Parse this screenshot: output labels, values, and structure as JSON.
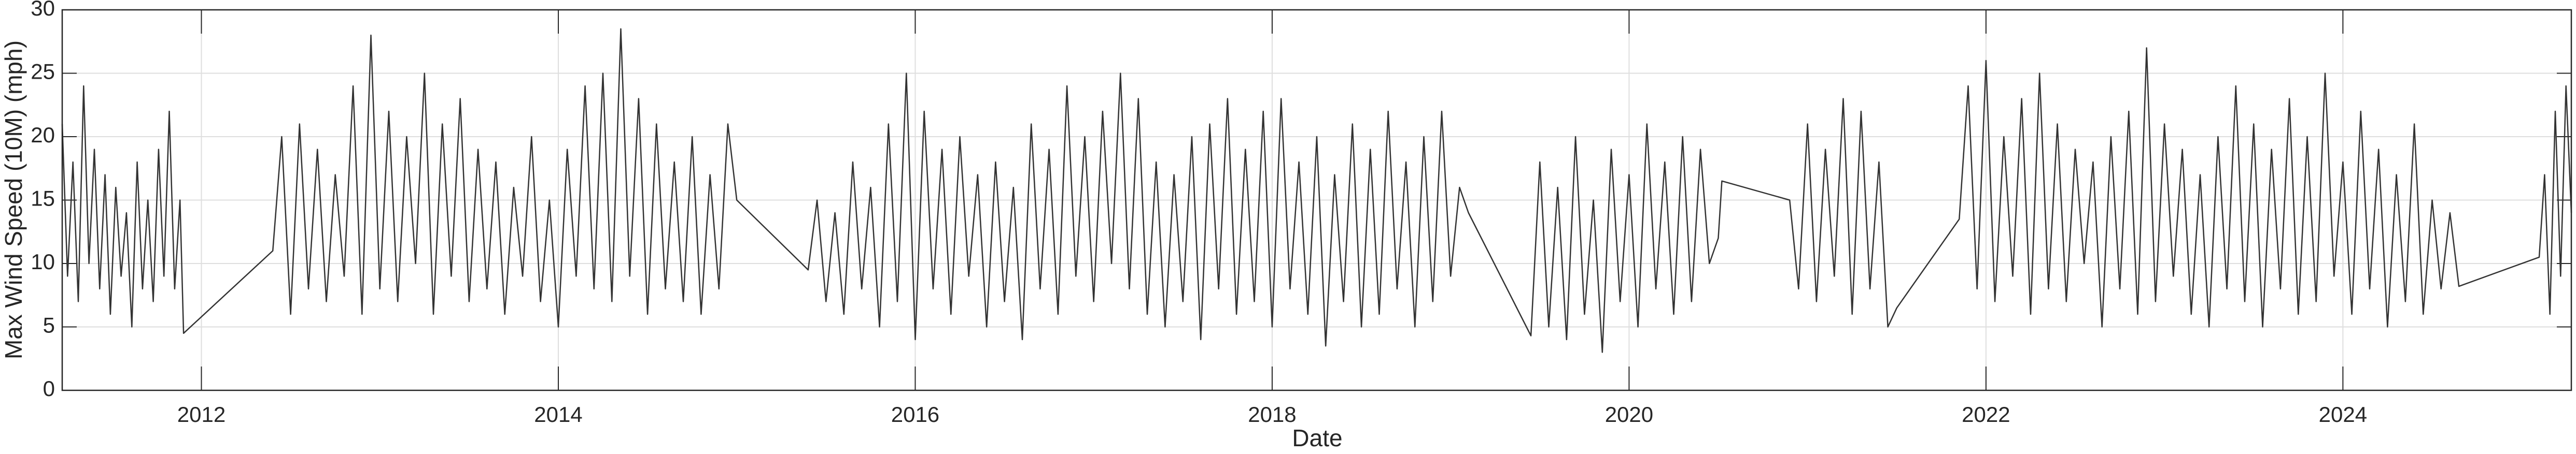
{
  "chart_data": {
    "type": "line",
    "x_label": "Date",
    "y_label": "Max Wind Speed (10M) (mph)",
    "color": "#333333",
    "grid": true,
    "xlim": [
      2011.22,
      2025.28
    ],
    "xticks": [
      2012,
      2014,
      2016,
      2018,
      2020,
      2022,
      2024
    ],
    "ylim": [
      0,
      30
    ],
    "yticks": [
      0,
      5,
      10,
      15,
      20,
      25,
      30
    ],
    "x": [
      2011.22,
      2011.25,
      2011.28,
      2011.31,
      2011.34,
      2011.37,
      2011.4,
      2011.43,
      2011.46,
      2011.49,
      2011.52,
      2011.55,
      2011.58,
      2011.61,
      2011.64,
      2011.67,
      2011.7,
      2011.73,
      2011.76,
      2011.79,
      2011.82,
      2011.85,
      2011.88,
      2011.9,
      2012.4,
      2012.45,
      2012.5,
      2012.55,
      2012.6,
      2012.65,
      2012.7,
      2012.75,
      2012.8,
      2012.85,
      2012.9,
      2012.95,
      2013,
      2013.05,
      2013.1,
      2013.15,
      2013.2,
      2013.25,
      2013.3,
      2013.35,
      2013.4,
      2013.45,
      2013.5,
      2013.55,
      2013.6,
      2013.65,
      2013.7,
      2013.75,
      2013.8,
      2013.85,
      2013.9,
      2013.95,
      2014,
      2014.05,
      2014.1,
      2014.15,
      2014.2,
      2014.25,
      2014.3,
      2014.35,
      2014.4,
      2014.45,
      2014.5,
      2014.55,
      2014.6,
      2014.65,
      2014.7,
      2014.75,
      2014.8,
      2014.85,
      2014.9,
      2014.95,
      2015,
      2015.4,
      2015.45,
      2015.5,
      2015.55,
      2015.6,
      2015.65,
      2015.7,
      2015.75,
      2015.8,
      2015.85,
      2015.9,
      2015.95,
      2016,
      2016.05,
      2016.1,
      2016.15,
      2016.2,
      2016.25,
      2016.3,
      2016.35,
      2016.4,
      2016.45,
      2016.5,
      2016.55,
      2016.6,
      2016.65,
      2016.7,
      2016.75,
      2016.8,
      2016.85,
      2016.9,
      2016.95,
      2017,
      2017.05,
      2017.1,
      2017.15,
      2017.2,
      2017.25,
      2017.3,
      2017.35,
      2017.4,
      2017.45,
      2017.5,
      2017.55,
      2017.6,
      2017.65,
      2017.7,
      2017.75,
      2017.8,
      2017.85,
      2017.9,
      2017.95,
      2018,
      2018.05,
      2018.1,
      2018.15,
      2018.2,
      2018.25,
      2018.3,
      2018.35,
      2018.4,
      2018.45,
      2018.5,
      2018.55,
      2018.6,
      2018.65,
      2018.7,
      2018.75,
      2018.8,
      2018.85,
      2018.9,
      2018.95,
      2019,
      2019.05,
      2019.1,
      2019.45,
      2019.5,
      2019.55,
      2019.6,
      2019.65,
      2019.7,
      2019.75,
      2019.8,
      2019.85,
      2019.9,
      2019.95,
      2020,
      2020.05,
      2020.1,
      2020.15,
      2020.2,
      2020.25,
      2020.3,
      2020.35,
      2020.4,
      2020.45,
      2020.5,
      2020.52,
      2020.9,
      2020.95,
      2021,
      2021.05,
      2021.1,
      2021.15,
      2021.2,
      2021.25,
      2021.3,
      2021.35,
      2021.4,
      2021.45,
      2021.5,
      2021.85,
      2021.9,
      2021.95,
      2022,
      2022.05,
      2022.1,
      2022.15,
      2022.2,
      2022.25,
      2022.3,
      2022.35,
      2022.4,
      2022.45,
      2022.5,
      2022.55,
      2022.6,
      2022.65,
      2022.7,
      2022.75,
      2022.8,
      2022.85,
      2022.9,
      2022.95,
      2023,
      2023.05,
      2023.1,
      2023.15,
      2023.2,
      2023.25,
      2023.3,
      2023.35,
      2023.4,
      2023.45,
      2023.5,
      2023.55,
      2023.6,
      2023.65,
      2023.7,
      2023.75,
      2023.8,
      2023.85,
      2023.9,
      2023.95,
      2024,
      2024.05,
      2024.1,
      2024.15,
      2024.2,
      2024.25,
      2024.3,
      2024.35,
      2024.4,
      2024.45,
      2024.5,
      2024.55,
      2024.6,
      2024.65,
      2025.1,
      2025.13,
      2025.16,
      2025.19,
      2025.22,
      2025.25,
      2025.28
    ],
    "values": [
      21,
      9,
      18,
      7,
      24,
      10,
      19,
      8,
      17,
      6,
      16,
      9,
      14,
      5,
      18,
      8,
      15,
      7,
      19,
      9,
      22,
      8,
      15,
      4.5,
      11,
      20,
      6,
      21,
      8,
      19,
      7,
      17,
      9,
      24,
      6,
      28,
      8,
      22,
      7,
      20,
      10,
      25,
      6,
      21,
      9,
      23,
      7,
      19,
      8,
      18,
      6,
      16,
      9,
      20,
      7,
      15,
      5,
      19,
      9,
      24,
      8,
      25,
      7,
      28.5,
      9,
      23,
      6,
      21,
      8,
      18,
      7,
      20,
      6,
      17,
      8,
      21,
      15,
      9.5,
      15,
      7,
      14,
      6,
      18,
      8,
      16,
      5,
      21,
      7,
      25,
      4,
      22,
      8,
      19,
      6,
      20,
      9,
      17,
      5,
      18,
      7,
      16,
      4,
      21,
      8,
      19,
      6,
      24,
      9,
      20,
      7,
      22,
      10,
      25,
      8,
      23,
      6,
      18,
      5,
      17,
      7,
      20,
      4,
      21,
      8,
      23,
      6,
      19,
      7,
      22,
      5,
      23,
      8,
      18,
      6,
      20,
      3.5,
      17,
      7,
      21,
      5,
      19,
      6,
      22,
      8,
      18,
      5,
      20,
      7,
      22,
      9,
      16,
      14,
      4.3,
      18,
      5,
      16,
      4,
      20,
      6,
      15,
      3,
      19,
      7,
      17,
      5,
      21,
      8,
      18,
      6,
      20,
      7,
      19,
      10,
      12,
      16.5,
      15,
      8,
      21,
      7,
      19,
      9,
      23,
      6,
      22,
      8,
      18,
      5,
      6.5,
      13.5,
      24,
      8,
      26,
      7,
      20,
      9,
      23,
      6,
      25,
      8,
      21,
      7,
      19,
      10,
      18,
      5,
      20,
      8,
      22,
      6,
      27,
      7,
      21,
      9,
      19,
      6,
      17,
      5,
      20,
      8,
      24,
      7,
      21,
      5,
      19,
      8,
      23,
      6,
      20,
      7,
      25,
      9,
      18,
      6,
      22,
      8,
      19,
      5,
      17,
      7,
      21,
      6,
      15,
      8,
      14,
      8.2,
      10.5,
      17,
      6,
      22,
      9,
      24,
      14
    ]
  }
}
